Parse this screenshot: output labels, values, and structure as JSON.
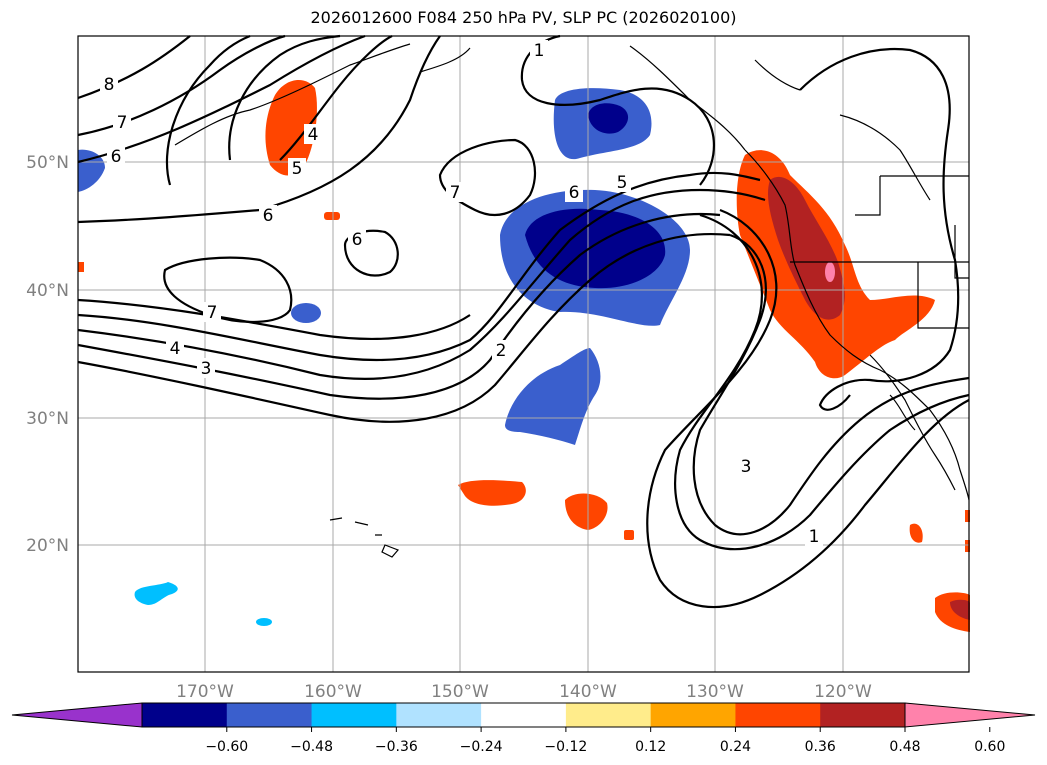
{
  "title": "2026012600 F084 250 hPa PV, SLP PC (2026020100)",
  "latitude_labels": [
    "50°N",
    "40°N",
    "30°N",
    "20°N"
  ],
  "longitude_labels": [
    "170°W",
    "160°W",
    "150°W",
    "140°W",
    "130°W",
    "120°W"
  ],
  "colorbar": {
    "tick_labels": [
      "−0.60",
      "−0.48",
      "−0.36",
      "−0.24",
      "−0.12",
      "0.12",
      "0.24",
      "0.36",
      "0.48",
      "0.60"
    ],
    "colors": [
      "#9932CC",
      "#00008B",
      "#3A5FCD",
      "#00BFFF",
      "#B0E2FF",
      "#FFFFFF",
      "#FFEC8B",
      "#FFA500",
      "#FF4500",
      "#B22222",
      "#FF82AB"
    ]
  },
  "contour_labels": [
    {
      "id": "c8",
      "text": "8"
    },
    {
      "id": "c7a",
      "text": "7"
    },
    {
      "id": "c6a",
      "text": "6"
    },
    {
      "id": "c4a",
      "text": "4"
    },
    {
      "id": "c5a",
      "text": "5"
    },
    {
      "id": "c6b",
      "text": "6"
    },
    {
      "id": "c6c",
      "text": "6"
    },
    {
      "id": "c7b",
      "text": "7"
    },
    {
      "id": "c4b",
      "text": "4"
    },
    {
      "id": "c3a",
      "text": "3"
    },
    {
      "id": "c7c",
      "text": "7"
    },
    {
      "id": "c6d",
      "text": "6"
    },
    {
      "id": "c5b",
      "text": "5"
    },
    {
      "id": "c2",
      "text": "2"
    },
    {
      "id": "c1a",
      "text": "1"
    },
    {
      "id": "c3b",
      "text": "3"
    },
    {
      "id": "c1b",
      "text": "1"
    }
  ]
}
